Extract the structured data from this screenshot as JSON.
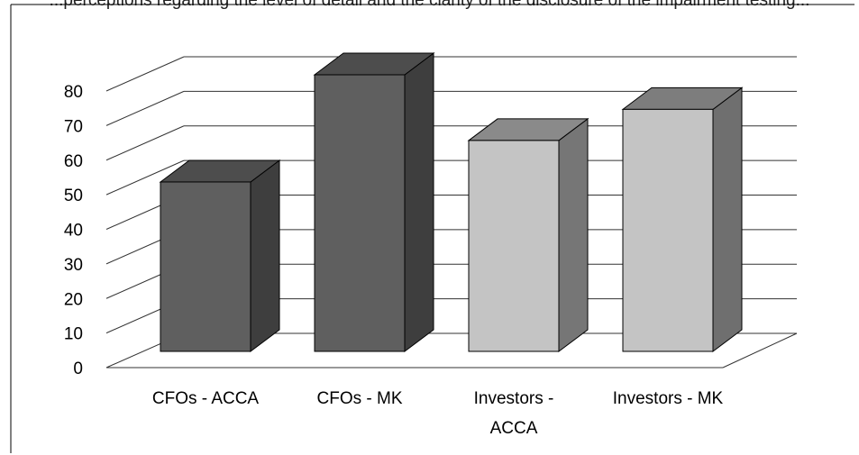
{
  "caption_fragment": "...perceptions regarding the level of detail and the clarity of the disclosure of the impairment testing...",
  "chart_data": {
    "type": "bar",
    "title": "",
    "xlabel": "",
    "ylabel": "",
    "categories": [
      [
        "CFOs - ACCA"
      ],
      [
        "CFOs - MK"
      ],
      [
        "Investors -",
        "ACCA"
      ],
      [
        "Investors - MK"
      ]
    ],
    "values": [
      49,
      80,
      61,
      70
    ],
    "ylim": [
      0,
      80
    ],
    "yticks": [
      0,
      10,
      20,
      30,
      40,
      50,
      60,
      70,
      80
    ],
    "grid": true,
    "legend": "none",
    "three_d": true,
    "colors": {
      "dark_front": "#5f5f5f",
      "dark_side": "#3e3e3e",
      "dark_top": "#4d4d4d",
      "light_front": "#c4c4c4",
      "light_side": "#767676",
      "light_top": "#8a8a8a",
      "mid_front": "#c4c4c4",
      "mid_side": "#6f6f6f",
      "mid_top": "#7d7d7d",
      "grid": "#333333",
      "frame": "#000000"
    },
    "bar_styles": [
      "dark",
      "dark",
      "light",
      "mid"
    ]
  }
}
